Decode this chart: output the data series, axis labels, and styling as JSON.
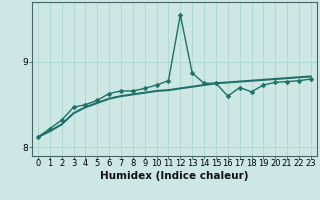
{
  "xlabel": "Humidex (Indice chaleur)",
  "background_color": "#cde8e4",
  "grid_color": "#b0d8d4",
  "line_color": "#1e7068",
  "x_values": [
    0,
    1,
    2,
    3,
    4,
    5,
    6,
    7,
    8,
    9,
    10,
    11,
    12,
    13,
    14,
    15,
    16,
    17,
    18,
    19,
    20,
    21,
    22,
    23
  ],
  "y_jagged": [
    8.12,
    8.22,
    8.32,
    8.47,
    8.5,
    8.55,
    8.63,
    8.66,
    8.66,
    8.69,
    8.73,
    8.78,
    9.55,
    8.87,
    8.75,
    8.75,
    8.6,
    8.7,
    8.65,
    8.73,
    8.76,
    8.77,
    8.78,
    8.8
  ],
  "y_smooth": [
    8.12,
    8.19,
    8.27,
    8.4,
    8.47,
    8.52,
    8.57,
    8.6,
    8.62,
    8.64,
    8.66,
    8.67,
    8.69,
    8.71,
    8.73,
    8.75,
    8.76,
    8.77,
    8.78,
    8.79,
    8.8,
    8.81,
    8.82,
    8.83
  ],
  "ylim_min": 7.9,
  "ylim_max": 9.7,
  "yticks": [
    8,
    9
  ],
  "xlim_min": -0.5,
  "xlim_max": 23.5,
  "markersize": 2.5,
  "linewidth": 1.0,
  "tick_fontsize": 6.5,
  "label_fontsize": 7.5
}
